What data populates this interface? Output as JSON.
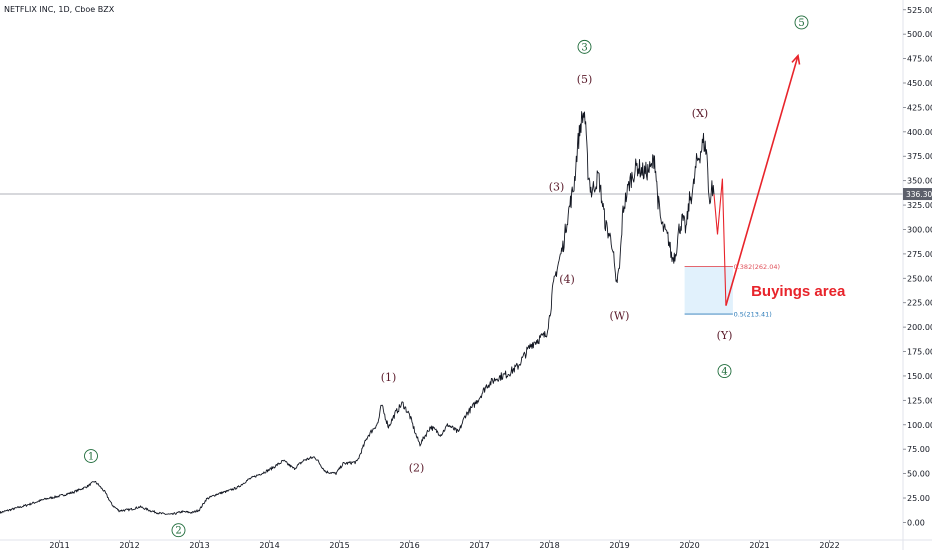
{
  "header": {
    "title": "NETFLIX INC, 1D, Cboe BZX"
  },
  "colors": {
    "price_line": "#131722",
    "arrow": "#e8242b",
    "wave_label": "#5a1a2a",
    "circle_label": "#1e6b3a",
    "fib_382": "#e0505a",
    "fib_05": "#2a7ab8",
    "buy_zone_fill": "#dceefc",
    "current_price_bg": "#5d606b"
  },
  "chart_data": {
    "type": "line",
    "title": "NETFLIX INC, 1D, Cboe BZX",
    "ylim": [
      -18,
      535
    ],
    "xlim": [
      2010.15,
      2023.05
    ],
    "y_ticks": [
      "525.00",
      "500.00",
      "475.00",
      "450.00",
      "425.00",
      "400.00",
      "375.00",
      "350.00",
      "325.00",
      "300.00",
      "275.00",
      "250.00",
      "225.00",
      "200.00",
      "175.00",
      "150.00",
      "125.00",
      "100.00",
      "75.00",
      "50.00",
      "25.00",
      "0.00"
    ],
    "x_ticks": [
      "2011",
      "2012",
      "2013",
      "2014",
      "2015",
      "2016",
      "2017",
      "2018",
      "2019",
      "2020",
      "2021",
      "2022"
    ],
    "current_price": "336.30",
    "series": [
      {
        "points": [
          [
            2010.15,
            10
          ],
          [
            2010.5,
            17
          ],
          [
            2010.8,
            24
          ],
          [
            2011.0,
            27
          ],
          [
            2011.2,
            31
          ],
          [
            2011.4,
            37
          ],
          [
            2011.5,
            42
          ],
          [
            2011.55,
            39
          ],
          [
            2011.65,
            31
          ],
          [
            2011.75,
            18
          ],
          [
            2011.85,
            12
          ],
          [
            2012.0,
            13
          ],
          [
            2012.15,
            16
          ],
          [
            2012.3,
            12
          ],
          [
            2012.45,
            9
          ],
          [
            2012.6,
            8
          ],
          [
            2012.75,
            11
          ],
          [
            2012.9,
            10
          ],
          [
            2013.0,
            13
          ],
          [
            2013.1,
            24
          ],
          [
            2013.25,
            29
          ],
          [
            2013.4,
            32
          ],
          [
            2013.55,
            36
          ],
          [
            2013.7,
            44
          ],
          [
            2013.85,
            49
          ],
          [
            2014.0,
            54
          ],
          [
            2014.2,
            63
          ],
          [
            2014.35,
            55
          ],
          [
            2014.5,
            64
          ],
          [
            2014.65,
            67
          ],
          [
            2014.8,
            52
          ],
          [
            2014.95,
            50
          ],
          [
            2015.05,
            60
          ],
          [
            2015.25,
            62
          ],
          [
            2015.4,
            88
          ],
          [
            2015.55,
            102
          ],
          [
            2015.6,
            120
          ],
          [
            2015.7,
            98
          ],
          [
            2015.8,
            112
          ],
          [
            2015.9,
            122
          ],
          [
            2016.0,
            110
          ],
          [
            2016.1,
            88
          ],
          [
            2016.15,
            80
          ],
          [
            2016.3,
            98
          ],
          [
            2016.45,
            90
          ],
          [
            2016.55,
            100
          ],
          [
            2016.7,
            92
          ],
          [
            2016.8,
            110
          ],
          [
            2016.9,
            118
          ],
          [
            2017.0,
            128
          ],
          [
            2017.1,
            140
          ],
          [
            2017.25,
            148
          ],
          [
            2017.4,
            152
          ],
          [
            2017.55,
            160
          ],
          [
            2017.65,
            172
          ],
          [
            2017.75,
            183
          ],
          [
            2017.85,
            188
          ],
          [
            2017.95,
            192
          ],
          [
            2018.0,
            210
          ],
          [
            2018.05,
            240
          ],
          [
            2018.1,
            258
          ],
          [
            2018.2,
            285
          ],
          [
            2018.25,
            310
          ],
          [
            2018.3,
            328
          ],
          [
            2018.35,
            345
          ],
          [
            2018.4,
            385
          ],
          [
            2018.45,
            410
          ],
          [
            2018.5,
            420
          ],
          [
            2018.55,
            360
          ],
          [
            2018.6,
            338
          ],
          [
            2018.7,
            355
          ],
          [
            2018.75,
            330
          ],
          [
            2018.8,
            305
          ],
          [
            2018.9,
            285
          ],
          [
            2018.95,
            242
          ],
          [
            2019.0,
            260
          ],
          [
            2019.05,
            320
          ],
          [
            2019.15,
            350
          ],
          [
            2019.25,
            365
          ],
          [
            2019.35,
            358
          ],
          [
            2019.45,
            362
          ],
          [
            2019.5,
            375
          ],
          [
            2019.55,
            330
          ],
          [
            2019.6,
            305
          ],
          [
            2019.7,
            290
          ],
          [
            2019.75,
            270
          ],
          [
            2019.8,
            275
          ],
          [
            2019.85,
            300
          ],
          [
            2019.9,
            310
          ],
          [
            2019.95,
            300
          ],
          [
            2020.0,
            330
          ],
          [
            2020.05,
            340
          ],
          [
            2020.1,
            368
          ],
          [
            2020.15,
            378
          ],
          [
            2020.2,
            390
          ],
          [
            2020.25,
            378
          ],
          [
            2020.27,
            340
          ],
          [
            2020.3,
            330
          ],
          [
            2020.32,
            345
          ],
          [
            2020.35,
            336
          ]
        ]
      }
    ]
  },
  "annotations": {
    "wave_labels": [
      {
        "text": "(1)",
        "x": 2015.7,
        "y": 145
      },
      {
        "text": "(2)",
        "x": 2016.1,
        "y": 52
      },
      {
        "text": "(3)",
        "x": 2018.1,
        "y": 340
      },
      {
        "text": "(4)",
        "x": 2018.25,
        "y": 245
      },
      {
        "text": "(5)",
        "x": 2018.5,
        "y": 450
      },
      {
        "text": "(W)",
        "x": 2019.0,
        "y": 208
      },
      {
        "text": "(X)",
        "x": 2020.15,
        "y": 415
      },
      {
        "text": "(Y)",
        "x": 2020.5,
        "y": 188
      }
    ],
    "circle_labels": [
      {
        "text": "1",
        "x": 2011.45,
        "y": 68
      },
      {
        "text": "2",
        "x": 2012.7,
        "y": -8
      },
      {
        "text": "3",
        "x": 2018.5,
        "y": 487
      },
      {
        "text": "4",
        "x": 2020.5,
        "y": 155
      },
      {
        "text": "5",
        "x": 2021.6,
        "y": 512
      }
    ],
    "fib_levels": [
      {
        "label": "0.382(262.04)",
        "value": 262.04
      },
      {
        "label": "0.5(213.41)",
        "value": 213.41
      }
    ],
    "buy_zone_label": "Buyings area"
  }
}
